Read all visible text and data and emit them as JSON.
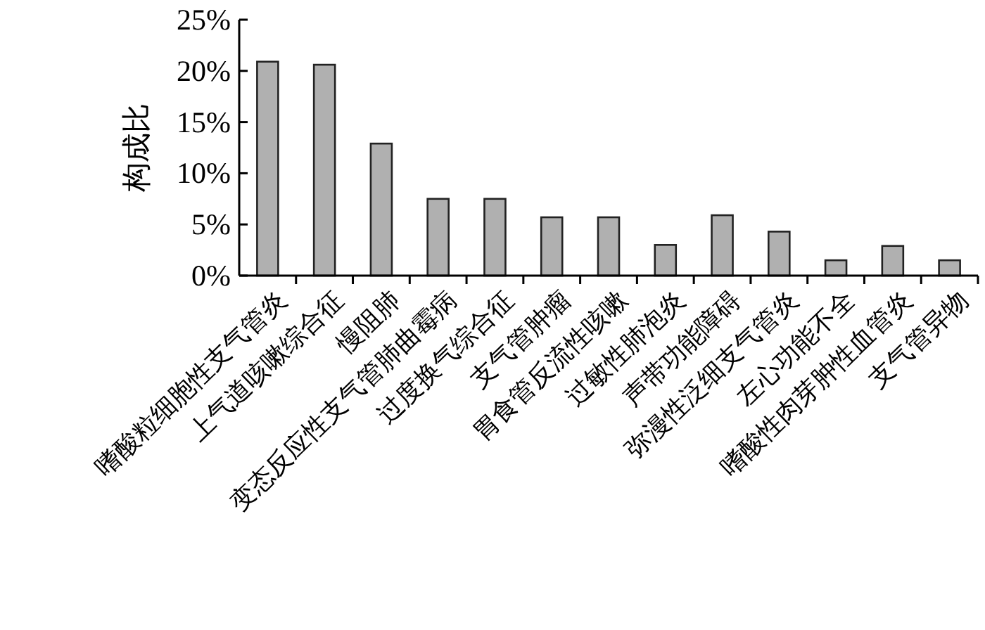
{
  "chart_data": {
    "type": "bar",
    "ylabel": "构成比",
    "categories": [
      "嗜酸粒细胞性支气管炎",
      "上气道咳嗽综合征",
      "慢阻肺",
      "变态反应性支气管肺曲霉病",
      "过度换气综合征",
      "支气管肿瘤",
      "胃食管反流性咳嗽",
      "过敏性肺泡炎",
      "声带功能障碍",
      "弥漫性泛细支气管炎",
      "左心功能不全",
      "嗜酸性肉芽肿性血管炎",
      "支气管异物"
    ],
    "values": [
      20.9,
      20.6,
      12.9,
      7.5,
      7.5,
      5.7,
      5.7,
      3.0,
      5.9,
      4.3,
      1.5,
      2.9,
      1.5
    ],
    "color": "#b0b0b0",
    "ylim": [
      0,
      25
    ],
    "yticks": [
      {
        "value": 0,
        "label": "0%"
      },
      {
        "value": 5,
        "label": "5%"
      },
      {
        "value": 10,
        "label": "10%"
      },
      {
        "value": 15,
        "label": "15%"
      },
      {
        "value": 20,
        "label": "20%"
      },
      {
        "value": 25,
        "label": "25%"
      }
    ]
  }
}
